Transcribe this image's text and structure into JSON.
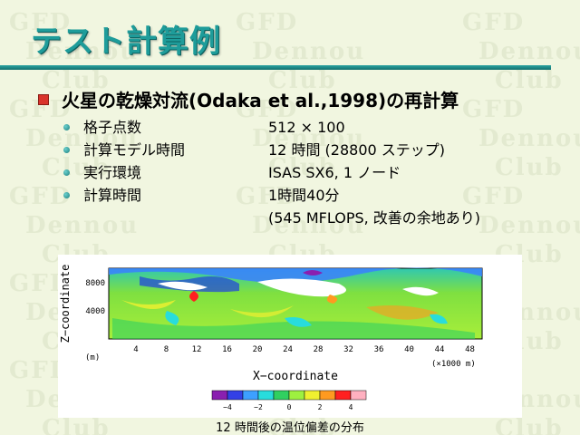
{
  "slide": {
    "title": "テスト計算例",
    "main_bullet": "火星の乾燥対流(Odaka et al.,1998)の再計算",
    "items": [
      {
        "label": "格子点数",
        "value": "512 × 100"
      },
      {
        "label": "計算モデル時間",
        "value": "12 時間 (28800 ステップ)"
      },
      {
        "label": "実行環境",
        "value": "ISAS SX6, 1 ノード"
      },
      {
        "label": "計算時間",
        "value": "1時間40分"
      }
    ],
    "extra_value": "(545 MFLOPS, 改善の余地あり)",
    "watermark_lines": [
      "GFD",
      "Dennou",
      "Club"
    ],
    "caption": "12 時間後の温位偏差の分布"
  },
  "figure": {
    "ylabel": "Z−coordinate",
    "xlabel": "X−coordinate",
    "yticks": [
      "8000",
      "4000"
    ],
    "xticks": [
      "4",
      "8",
      "12",
      "16",
      "20",
      "24",
      "28",
      "32",
      "36",
      "40",
      "44",
      "48"
    ],
    "x_unit_left": "(m)",
    "x_unit_right": "(×1000 m)",
    "colorbar_labels": [
      "−4",
      "−2",
      "0",
      "2",
      "4"
    ],
    "colorbar_colors": [
      "#8a1fb0",
      "#3340e6",
      "#3da0ff",
      "#28dcdc",
      "#30d060",
      "#9ef040",
      "#f0f030",
      "#ff9a20",
      "#ff2020",
      "#ffb0c0"
    ]
  },
  "colors": {
    "title": "#1e9c9a",
    "rule": "#13706e",
    "bullet": "#d9342b",
    "background": "#f1f6e0"
  }
}
